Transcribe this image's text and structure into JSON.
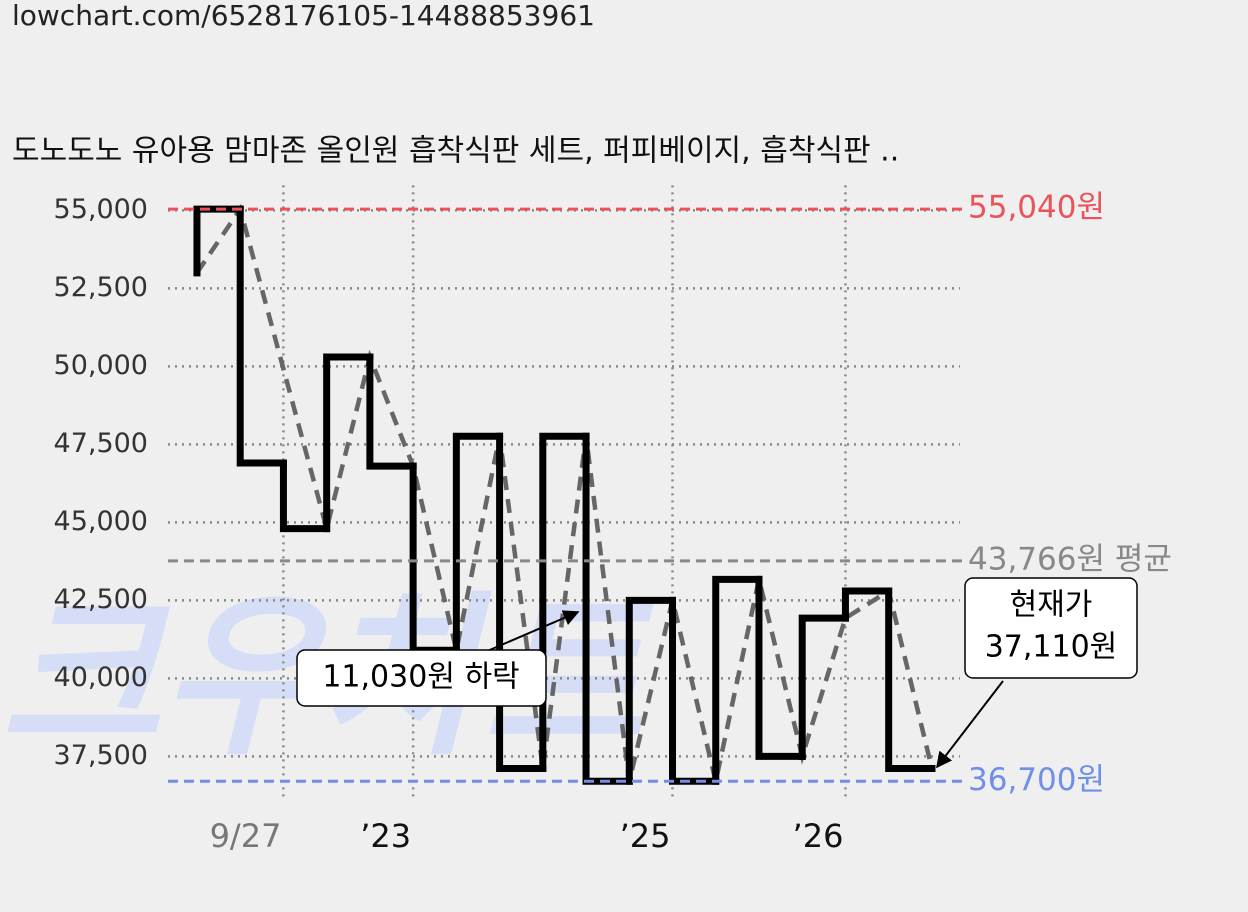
{
  "header": {
    "url": "lowchart.com/6528176105-14488853961"
  },
  "chart_data": {
    "type": "step",
    "title": "도노도노 유아용 맘마존 올인원 흡착식판 세트, 퍼피베이지, 흡착식판 ..",
    "watermark": "크우차트",
    "x": [
      0,
      0,
      1,
      2,
      3,
      4,
      5,
      6,
      7,
      8,
      9,
      10,
      11,
      12,
      13,
      14,
      15,
      16,
      17
    ],
    "series": [
      {
        "color": "#000000",
        "values": [
          53000,
          55040,
          46900,
          44800,
          50300,
          46800,
          40900,
          47760,
          37110,
          47760,
          36700,
          42500,
          36700,
          43170,
          37500,
          41930,
          42800,
          37110,
          37110
        ]
      },
      {
        "color": "#666666",
        "style": "dashed",
        "x": [
          0,
          1,
          3,
          4,
          5,
          6,
          7,
          8,
          9,
          10,
          11,
          12,
          13,
          14,
          15,
          16,
          17
        ],
        "values": [
          53000,
          55040,
          44800,
          50300,
          46800,
          40900,
          47760,
          37110,
          47760,
          36700,
          42500,
          36700,
          43170,
          37500,
          41930,
          42800,
          37110
        ]
      }
    ],
    "xlim": [
      -0.67,
      17.65
    ],
    "xticks": [
      {
        "value": 2,
        "label": "9/27"
      },
      {
        "value": 5,
        "label": "’23"
      },
      {
        "value": 11,
        "label": "’25"
      },
      {
        "value": 15,
        "label": "’26"
      }
    ],
    "ylim": [
      36100,
      55800
    ],
    "yticks": [
      {
        "value": 37500,
        "label": "37,500"
      },
      {
        "value": 40000,
        "label": "40,000"
      },
      {
        "value": 42500,
        "label": "42,500"
      },
      {
        "value": 45000,
        "label": "45,000"
      },
      {
        "value": 47500,
        "label": "47,500"
      },
      {
        "value": 50000,
        "label": "50,000"
      },
      {
        "value": 52500,
        "label": "52,500"
      },
      {
        "value": 55000,
        "label": "55,000"
      }
    ],
    "grid": true,
    "ref_lines": [
      {
        "value": 55040,
        "label": "55,040원",
        "color": "#e8545a"
      },
      {
        "value": 43766,
        "label": "43,766원 평균",
        "color": "#888888"
      },
      {
        "value": 36700,
        "label": "36,700원",
        "color": "#6f8fe8"
      }
    ],
    "annotations": [
      {
        "text": "11,030원 하락"
      },
      {
        "lines": [
          "현재가",
          "37,110원"
        ]
      }
    ]
  }
}
